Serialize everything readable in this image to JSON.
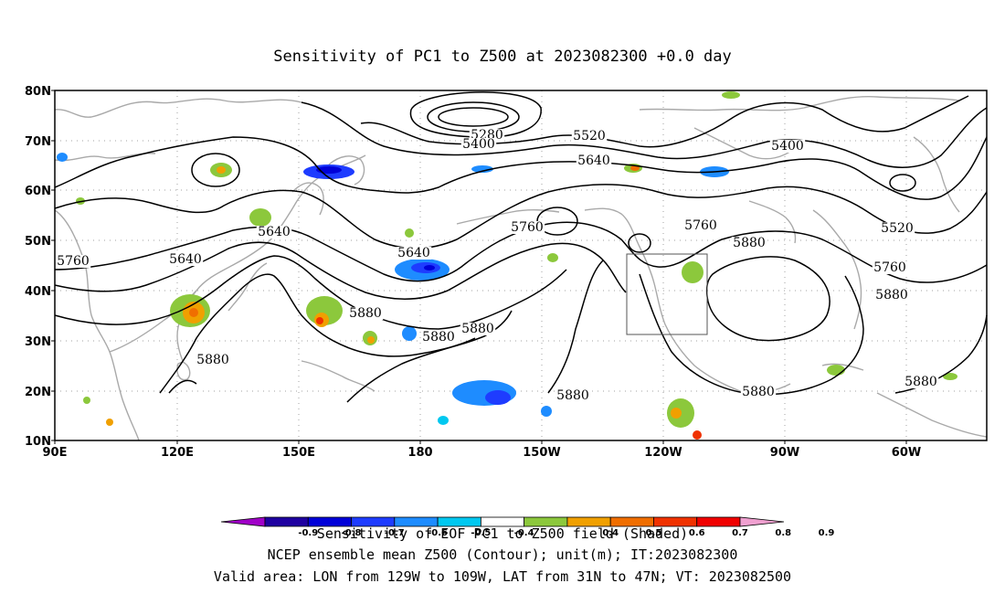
{
  "title": "Sensitivity of PC1 to Z500 at 2023082300 +0.0 day",
  "map": {
    "lon_labels": [
      "90E",
      "120E",
      "150E",
      "180",
      "150W",
      "120W",
      "90W",
      "60W"
    ],
    "lat_labels": [
      "80N",
      "70N",
      "60N",
      "50N",
      "40N",
      "30N",
      "20N",
      "10N"
    ],
    "contour_labels": [
      "5280",
      "5400",
      "5520",
      "5640",
      "5400",
      "5640",
      "5760",
      "5760",
      "5880",
      "5640",
      "5520",
      "5760",
      "5640",
      "5760",
      "5880",
      "5880",
      "5880",
      "5880",
      "5880",
      "5880",
      "5880"
    ],
    "valid_box": {
      "lon_from": "129W",
      "lon_to": "109W",
      "lat_from": "31N",
      "lat_to": "47N"
    }
  },
  "colorbar": {
    "tick_labels": [
      "-0.9",
      "-0.8",
      "-0.7",
      "-0.6",
      "-0.5",
      "-0.4",
      "0.4",
      "0.5",
      "0.6",
      "0.7",
      "0.8",
      "0.9"
    ],
    "colors": [
      "#a000c8",
      "#1e00a0",
      "#0000d8",
      "#1e3cff",
      "#1e8cff",
      "#00c8f0",
      "#ffffff",
      "#8cc83c",
      "#f0a000",
      "#f06e00",
      "#f03200",
      "#f00000",
      "#f0a0d0"
    ]
  },
  "footer": {
    "line1": "Sensitivity of EOF PC1 to Z500 field (Shaded)",
    "line2": "NCEP ensemble mean Z500 (Contour); unit(m); IT:2023082300",
    "line3": "Valid area: LON from 129W to 109W, LAT from 31N to 47N; VT: 2023082500"
  }
}
